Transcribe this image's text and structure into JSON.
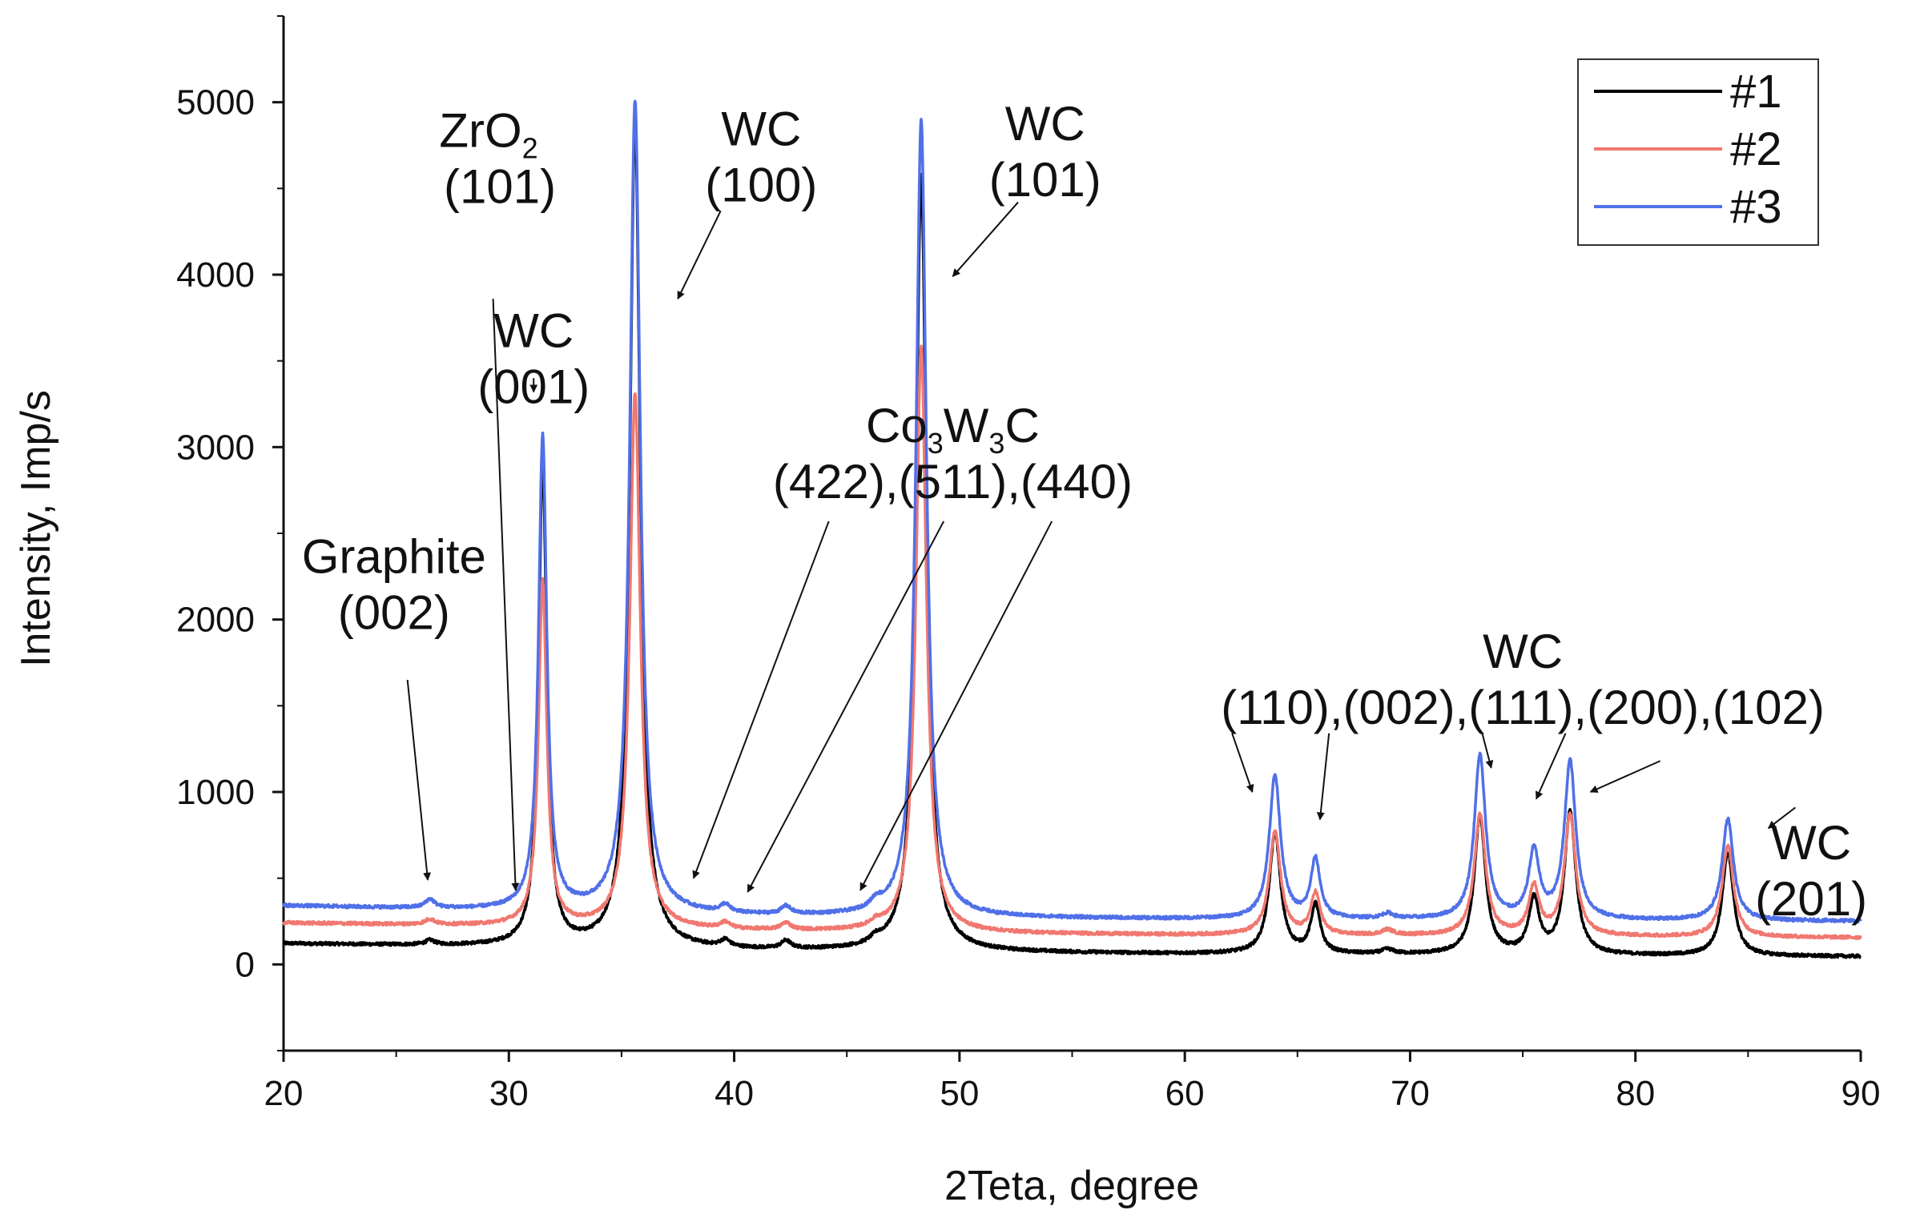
{
  "chart_data": {
    "type": "line",
    "title": "",
    "xlabel": "2Teta, degree",
    "ylabel": "Intensity, Imp/s",
    "xlim": [
      20,
      90
    ],
    "ylim": [
      -500,
      5500
    ],
    "xticks": [
      20,
      30,
      40,
      50,
      60,
      70,
      80,
      90
    ],
    "yticks": [
      0,
      1000,
      2000,
      3000,
      4000,
      5000
    ],
    "legend": {
      "placement": "top-right"
    },
    "series": [
      {
        "name": "#1",
        "color": "#000000",
        "base": 95,
        "baseline": [
          [
            20,
            120
          ],
          [
            30,
            100
          ],
          [
            40,
            80
          ],
          [
            50,
            70
          ],
          [
            60,
            60
          ],
          [
            70,
            55
          ],
          [
            80,
            50
          ],
          [
            90,
            45
          ]
        ],
        "peaks": [
          [
            26.5,
            25,
            0.25
          ],
          [
            31.5,
            2800,
            0.22
          ],
          [
            35.6,
            4800,
            0.28
          ],
          [
            39.6,
            40,
            0.25
          ],
          [
            42.3,
            45,
            0.25
          ],
          [
            46.3,
            30,
            0.3
          ],
          [
            48.3,
            4500,
            0.28
          ],
          [
            64.0,
            700,
            0.3
          ],
          [
            65.8,
            280,
            0.25
          ],
          [
            69.0,
            25,
            0.3
          ],
          [
            73.1,
            800,
            0.3
          ],
          [
            75.5,
            310,
            0.28
          ],
          [
            77.1,
            830,
            0.3
          ],
          [
            84.1,
            600,
            0.3
          ]
        ]
      },
      {
        "name": "#2",
        "color": "#f07870",
        "base": 185,
        "baseline": [
          [
            20,
            240
          ],
          [
            30,
            220
          ],
          [
            40,
            195
          ],
          [
            50,
            180
          ],
          [
            60,
            170
          ],
          [
            70,
            165
          ],
          [
            80,
            160
          ],
          [
            90,
            155
          ]
        ],
        "peaks": [
          [
            26.5,
            30,
            0.25
          ],
          [
            31.5,
            2000,
            0.22
          ],
          [
            35.6,
            3100,
            0.28
          ],
          [
            39.6,
            35,
            0.25
          ],
          [
            42.3,
            40,
            0.25
          ],
          [
            46.3,
            30,
            0.3
          ],
          [
            48.3,
            3400,
            0.28
          ],
          [
            64.0,
            600,
            0.3
          ],
          [
            65.8,
            240,
            0.25
          ],
          [
            69.0,
            30,
            0.3
          ],
          [
            73.1,
            700,
            0.3
          ],
          [
            75.5,
            280,
            0.28
          ],
          [
            77.1,
            700,
            0.3
          ],
          [
            84.1,
            530,
            0.3
          ]
        ]
      },
      {
        "name": "#3",
        "color": "#5070e8",
        "base": 280,
        "baseline": [
          [
            20,
            340
          ],
          [
            30,
            310
          ],
          [
            40,
            280
          ],
          [
            50,
            270
          ],
          [
            60,
            262
          ],
          [
            70,
            258
          ],
          [
            80,
            255
          ],
          [
            90,
            250
          ]
        ],
        "peaks": [
          [
            26.5,
            50,
            0.25
          ],
          [
            31.5,
            2750,
            0.22
          ],
          [
            35.6,
            4710,
            0.28
          ],
          [
            39.6,
            45,
            0.25
          ],
          [
            42.3,
            45,
            0.25
          ],
          [
            46.3,
            45,
            0.3
          ],
          [
            48.3,
            4620,
            0.28
          ],
          [
            64.0,
            830,
            0.3
          ],
          [
            65.8,
            340,
            0.25
          ],
          [
            69.0,
            30,
            0.3
          ],
          [
            73.1,
            950,
            0.3
          ],
          [
            75.5,
            390,
            0.28
          ],
          [
            77.1,
            915,
            0.3
          ],
          [
            84.1,
            590,
            0.3
          ]
        ]
      }
    ],
    "annotations": [
      {
        "id": "graphite",
        "lines": [
          "Graphite",
          "(002)"
        ],
        "text_at": [
          24.9,
          2270
        ],
        "arrows": [
          [
            [
              25.5,
              1650
            ],
            [
              26.4,
              490
            ]
          ]
        ]
      },
      {
        "id": "zro2",
        "lines": [
          "ZrO",
          "(101)"
        ],
        "sub": "2",
        "text_at": [
          29.6,
          4740
        ],
        "arrows": [
          [
            [
              29.3,
              3860
            ],
            [
              30.3,
              430
            ]
          ]
        ]
      },
      {
        "id": "wc001",
        "lines": [
          "WC",
          "(001)"
        ],
        "text_at": [
          31.1,
          3580
        ],
        "arrows": [
          [
            [
              31.1,
              3400
            ],
            [
              31.1,
              3320
            ]
          ]
        ]
      },
      {
        "id": "wc100",
        "lines": [
          "WC",
          "(100)"
        ],
        "text_at": [
          41.2,
          4750
        ],
        "arrows": [
          [
            [
              39.4,
              4370
            ],
            [
              37.5,
              3860
            ]
          ]
        ]
      },
      {
        "id": "wc101",
        "lines": [
          "WC",
          "(101)"
        ],
        "text_at": [
          53.8,
          4780
        ],
        "arrows": [
          [
            [
              52.6,
              4420
            ],
            [
              49.7,
              3990
            ]
          ]
        ]
      },
      {
        "id": "co3w3c",
        "lines": [
          "Co W C",
          "(422),(511),(440)"
        ],
        "sub_positions": [
          "3",
          "3"
        ],
        "text_at": [
          49.7,
          3030
        ],
        "arrows": [
          [
            [
              44.2,
              2570
            ],
            [
              38.2,
              500
            ]
          ],
          [
            [
              49.3,
              2570
            ],
            [
              40.6,
              420
            ]
          ],
          [
            [
              54.1,
              2570
            ],
            [
              45.6,
              430
            ]
          ]
        ]
      },
      {
        "id": "wc-mid",
        "lines": [
          "WC",
          "(110),(002),(111),(200),(102)"
        ],
        "text_at": [
          75.0,
          1720
        ],
        "arrows": [
          [
            [
              62.1,
              1340
            ],
            [
              63.0,
              1000
            ]
          ],
          [
            [
              66.4,
              1340
            ],
            [
              66.0,
              840
            ]
          ],
          [
            [
              73.2,
              1340
            ],
            [
              73.6,
              1140
            ]
          ],
          [
            [
              76.9,
              1340
            ],
            [
              75.6,
              960
            ]
          ],
          [
            [
              81.1,
              1180
            ],
            [
              78.0,
              1000
            ]
          ]
        ]
      },
      {
        "id": "wc201",
        "lines": [
          "WC",
          "(201)"
        ],
        "text_at": [
          87.8,
          610
        ],
        "arrows": [
          [
            [
              87.1,
              910
            ],
            [
              85.9,
              790
            ]
          ]
        ]
      }
    ]
  }
}
